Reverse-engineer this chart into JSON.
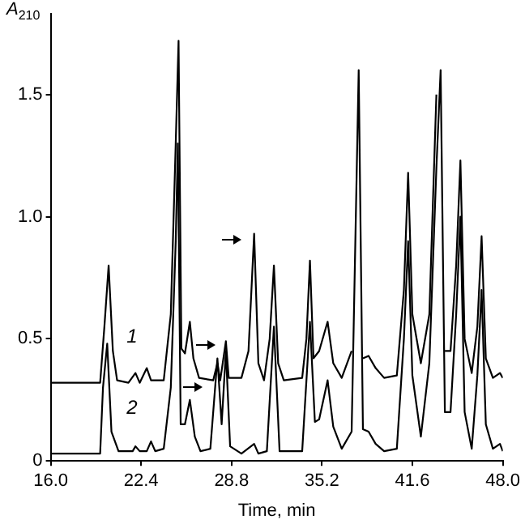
{
  "chart_data": {
    "type": "line",
    "xlabel": "Time, min",
    "ylabel": "A$_{210}$",
    "xlim": [
      16,
      48
    ],
    "xticks": [
      {
        "value": 16,
        "label": "16.0"
      },
      {
        "value": 22.4,
        "label": "22.4"
      },
      {
        "value": 28.8,
        "label": "28.8"
      },
      {
        "value": 35.2,
        "label": "35.2"
      },
      {
        "value": 41.6,
        "label": "41.6"
      },
      {
        "value": 48,
        "label": "48.0"
      }
    ],
    "ylim": [
      0,
      1.83
    ],
    "yticks": [
      0,
      0.5,
      {
        "value": 1,
        "label": "1.0"
      },
      1.5
    ],
    "grid": false,
    "legend": false,
    "marker": "none",
    "line_style": "solid",
    "series": [
      {
        "name": "1",
        "color": "#000000",
        "x": [
          16.0,
          19.5,
          19.8,
          20.1,
          20.4,
          20.7,
          21.5,
          22.0,
          22.3,
          22.8,
          23.1,
          24.0,
          24.5,
          24.85,
          25.05,
          25.25,
          25.5,
          25.85,
          26.1,
          26.5,
          27.5,
          27.8,
          28.0,
          28.4,
          28.6,
          29.5,
          30.0,
          30.4,
          30.7,
          31.1,
          31.5,
          31.8,
          32.1,
          32.5,
          33.8,
          34.1,
          34.35,
          34.6,
          35.0,
          35.6,
          36.0,
          36.6,
          37.3,
          37.8,
          38.1,
          38.5,
          39.0,
          39.6,
          40.5,
          41.0,
          41.3,
          41.6,
          42.2,
          42.8,
          43.3,
          43.6,
          43.9,
          44.3,
          44.7,
          45.0,
          45.3,
          45.8,
          46.2,
          46.5,
          46.8,
          47.3,
          47.8,
          48.0
        ],
        "values": [
          0.32,
          0.32,
          0.55,
          0.8,
          0.45,
          0.33,
          0.32,
          0.36,
          0.32,
          0.38,
          0.33,
          0.33,
          0.6,
          1.3,
          1.72,
          0.46,
          0.44,
          0.57,
          0.42,
          0.34,
          0.33,
          0.4,
          0.33,
          0.49,
          0.34,
          0.34,
          0.45,
          0.93,
          0.4,
          0.33,
          0.5,
          0.8,
          0.4,
          0.33,
          0.34,
          0.5,
          0.82,
          0.42,
          0.45,
          0.57,
          0.4,
          0.34,
          0.45,
          null,
          0.42,
          0.43,
          0.38,
          0.34,
          0.35,
          0.7,
          1.18,
          0.6,
          0.4,
          0.6,
          1.5,
          null,
          0.45,
          0.45,
          0.8,
          1.23,
          0.5,
          0.36,
          0.55,
          0.92,
          0.42,
          0.34,
          0.36,
          0.34
        ]
      },
      {
        "name": "2",
        "color": "#000000",
        "x": [
          16.0,
          19.5,
          19.7,
          20.0,
          20.3,
          20.8,
          21.8,
          22.0,
          22.3,
          22.8,
          23.1,
          23.4,
          24.0,
          24.5,
          24.85,
          25.0,
          25.2,
          25.5,
          25.85,
          26.2,
          26.6,
          27.3,
          27.8,
          28.1,
          28.4,
          28.7,
          29.5,
          30.4,
          30.7,
          31.3,
          31.8,
          32.2,
          33.8,
          34.35,
          34.7,
          35.0,
          35.6,
          36.0,
          36.6,
          37.3,
          37.8,
          38.1,
          38.5,
          39.0,
          39.6,
          40.5,
          41.0,
          41.3,
          41.6,
          42.2,
          42.8,
          43.3,
          43.6,
          43.9,
          44.3,
          44.7,
          45.0,
          45.3,
          45.8,
          46.2,
          46.5,
          46.8,
          47.3,
          47.8,
          48.0
        ],
        "values": [
          0.03,
          0.03,
          0.3,
          0.48,
          0.12,
          0.04,
          0.04,
          0.06,
          0.04,
          0.04,
          0.08,
          0.04,
          0.05,
          0.3,
          0.9,
          1.3,
          0.15,
          0.15,
          0.25,
          0.1,
          0.04,
          0.05,
          0.42,
          0.15,
          0.45,
          0.06,
          0.03,
          0.07,
          0.03,
          0.04,
          0.55,
          0.04,
          0.04,
          0.57,
          0.16,
          0.17,
          0.33,
          0.14,
          0.05,
          0.12,
          1.6,
          0.13,
          0.12,
          0.07,
          0.04,
          0.05,
          0.5,
          0.9,
          0.35,
          0.1,
          0.4,
          1.2,
          1.6,
          0.2,
          0.2,
          0.6,
          1.0,
          0.2,
          0.05,
          0.35,
          0.7,
          0.15,
          0.05,
          0.07,
          0.04
        ]
      }
    ]
  }
}
